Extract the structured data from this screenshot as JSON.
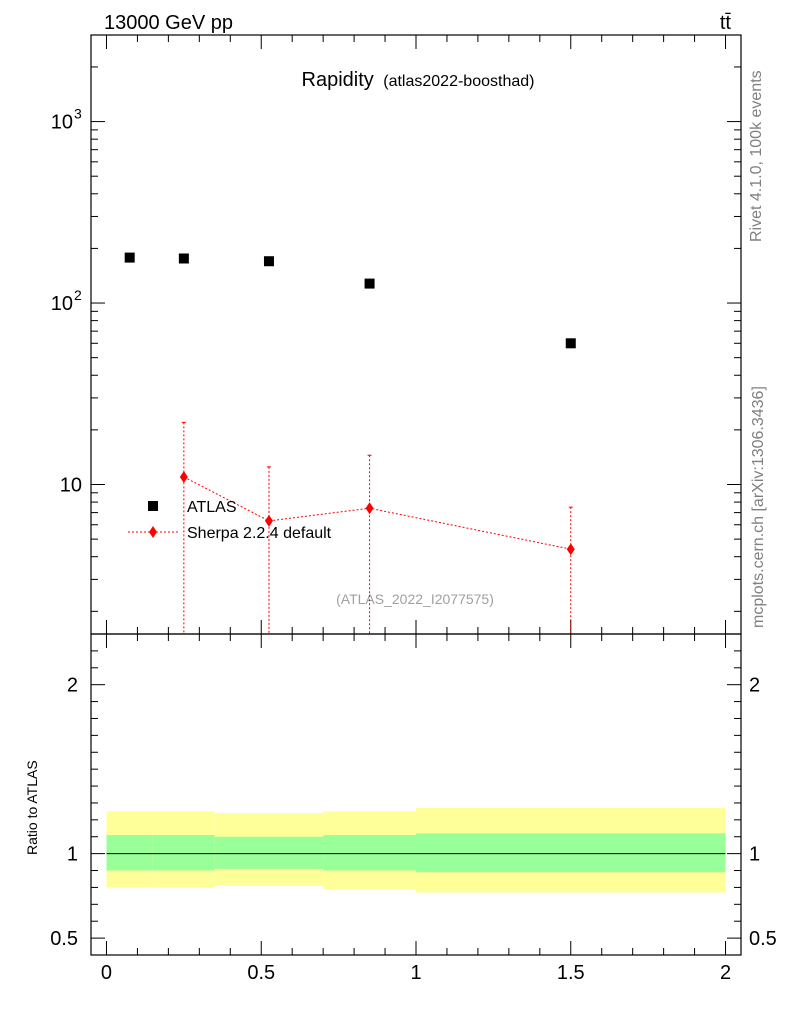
{
  "header": {
    "energy_label": "13000 GeV pp",
    "process_label": "tt̄",
    "rivet_label": "Rivet 4.1.0,  100k events",
    "source_label": "mcplots.cern.ch [arXiv:1306.3436]"
  },
  "chart_data": [
    {
      "type": "scatter",
      "title": "Rapidity",
      "subtitle": "(atlas2022-boosthad)",
      "watermark": "(ATLAS_2022_I2077575)",
      "yscale": "log",
      "xlim": [
        -0.05,
        2.05
      ],
      "ylim": [
        1.5,
        3000
      ],
      "y_ticks": [
        {
          "value": 10,
          "label": "10"
        },
        {
          "value": 100,
          "label": "10",
          "exp": "2"
        },
        {
          "value": 1000,
          "label": "10",
          "exp": "3"
        }
      ],
      "legend_position": "lower-left",
      "series": [
        {
          "name": "ATLAS",
          "marker": "square",
          "color": "#000000",
          "x": [
            0.075,
            0.25,
            0.525,
            0.85,
            1.5
          ],
          "y": [
            178,
            176,
            170,
            128,
            60
          ]
        },
        {
          "name": "Sherpa 2.2.4 default",
          "marker": "diamond",
          "line": "dotted",
          "color": "#ff0000",
          "x": [
            0.25,
            0.525,
            0.85,
            1.5
          ],
          "y": [
            11.0,
            6.3,
            7.4,
            4.4
          ],
          "y_up": [
            22.0,
            12.5,
            14.5,
            7.5
          ],
          "y_down": [
            0,
            0,
            0,
            0
          ]
        }
      ]
    },
    {
      "type": "area",
      "ylabel": "Ratio to ATLAS",
      "xlim": [
        -0.05,
        2.05
      ],
      "ylim": [
        0.4,
        2.3
      ],
      "x_ticks": [
        {
          "value": 0,
          "label": "0"
        },
        {
          "value": 0.5,
          "label": "0.5"
        },
        {
          "value": 1,
          "label": "1"
        },
        {
          "value": 1.5,
          "label": "1.5"
        },
        {
          "value": 2,
          "label": "2"
        }
      ],
      "y_ticks": [
        {
          "value": 0.5,
          "label": "0.5"
        },
        {
          "value": 1,
          "label": "1"
        },
        {
          "value": 2,
          "label": "2"
        }
      ],
      "reference_line": 1,
      "bands": [
        {
          "x0": 0.0,
          "x1": 0.15,
          "inner": [
            0.9,
            1.11
          ],
          "outer": [
            0.8,
            1.25
          ]
        },
        {
          "x0": 0.15,
          "x1": 0.35,
          "inner": [
            0.9,
            1.11
          ],
          "outer": [
            0.8,
            1.25
          ]
        },
        {
          "x0": 0.35,
          "x1": 0.7,
          "inner": [
            0.91,
            1.1
          ],
          "outer": [
            0.81,
            1.24
          ]
        },
        {
          "x0": 0.7,
          "x1": 1.0,
          "inner": [
            0.9,
            1.11
          ],
          "outer": [
            0.79,
            1.25
          ]
        },
        {
          "x0": 1.0,
          "x1": 2.0,
          "inner": [
            0.89,
            1.12
          ],
          "outer": [
            0.77,
            1.27
          ]
        }
      ],
      "colors": {
        "inner": "#99ff99",
        "outer": "#ffff99"
      }
    }
  ]
}
